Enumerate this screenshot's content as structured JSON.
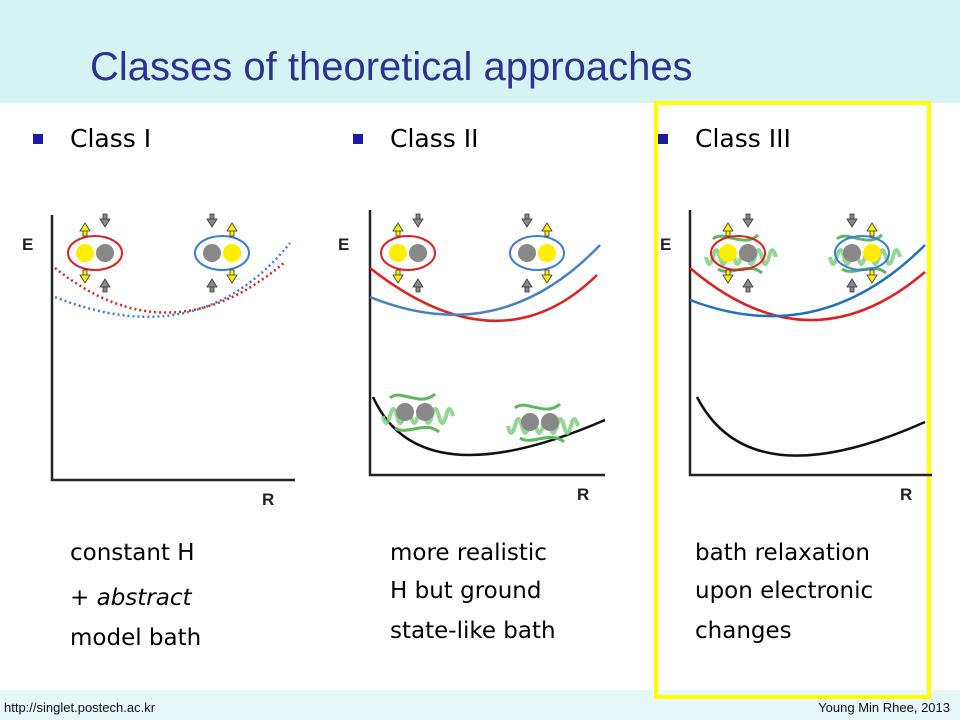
{
  "header": {
    "title": "Classes of theoretical approaches"
  },
  "columns": [
    {
      "heading": "Class I",
      "axis_y": "E",
      "axis_x": "R",
      "caption": [
        [
          "constant H"
        ],
        [
          "+",
          "abstract"
        ],
        [
          "model bath"
        ]
      ]
    },
    {
      "heading": "Class II",
      "axis_y": "E",
      "axis_x": "R",
      "caption": [
        [
          "more realistic"
        ],
        [
          "H but ground"
        ],
        [
          "state-like bath"
        ]
      ]
    },
    {
      "heading": "Class III",
      "axis_y": "E",
      "axis_x": "R",
      "caption": [
        [
          "bath relaxation"
        ],
        [
          "upon electronic"
        ],
        [
          "changes"
        ]
      ]
    }
  ],
  "footer": {
    "url": "http://singlet.postech.ac.kr",
    "author": "Young Min Rhee, 2013"
  }
}
